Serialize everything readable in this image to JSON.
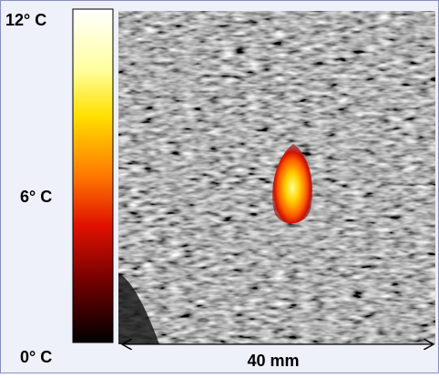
{
  "colorbar": {
    "labels": [
      "12° C",
      "6° C",
      "0° C"
    ]
  },
  "scale_bar": {
    "label": "40 mm"
  }
}
